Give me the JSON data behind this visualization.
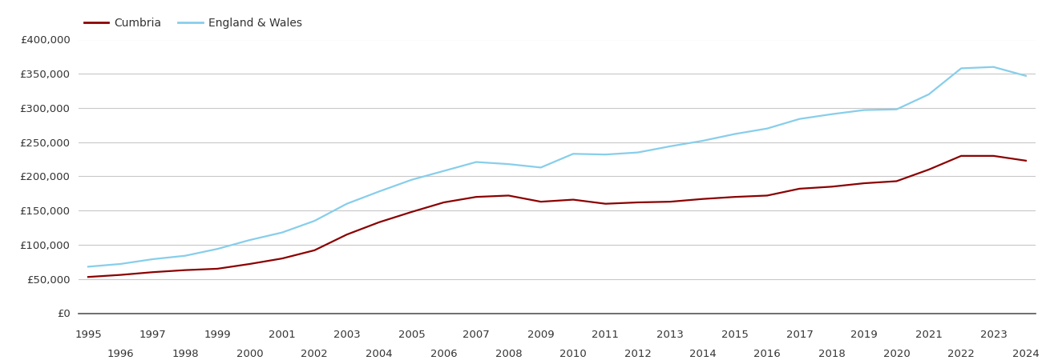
{
  "legend_labels": [
    "Cumbria",
    "England & Wales"
  ],
  "cumbria_color": "#8B0000",
  "ew_color": "#87CEEB",
  "legend_text_color": "#333333",
  "background_color": "#ffffff",
  "grid_color": "#c8c8c8",
  "years": [
    1995,
    1996,
    1997,
    1998,
    1999,
    2000,
    2001,
    2002,
    2003,
    2004,
    2005,
    2006,
    2007,
    2008,
    2009,
    2010,
    2011,
    2012,
    2013,
    2014,
    2015,
    2016,
    2017,
    2018,
    2019,
    2020,
    2021,
    2022,
    2023,
    2024
  ],
  "cumbria": [
    53000,
    56000,
    60000,
    63000,
    65000,
    72000,
    80000,
    92000,
    115000,
    133000,
    148000,
    162000,
    170000,
    172000,
    163000,
    166000,
    160000,
    162000,
    163000,
    167000,
    170000,
    172000,
    182000,
    185000,
    190000,
    193000,
    210000,
    230000,
    230000,
    223000
  ],
  "england_wales": [
    68000,
    72000,
    79000,
    84000,
    94000,
    107000,
    118000,
    135000,
    160000,
    178000,
    195000,
    208000,
    221000,
    218000,
    213000,
    233000,
    232000,
    235000,
    244000,
    252000,
    262000,
    270000,
    284000,
    291000,
    297000,
    298000,
    320000,
    358000,
    360000,
    347000
  ],
  "ylim": [
    0,
    400000
  ],
  "yticks": [
    0,
    50000,
    100000,
    150000,
    200000,
    250000,
    300000,
    350000,
    400000
  ],
  "line_width": 1.6,
  "tick_fontsize": 9.5,
  "legend_fontsize": 10
}
